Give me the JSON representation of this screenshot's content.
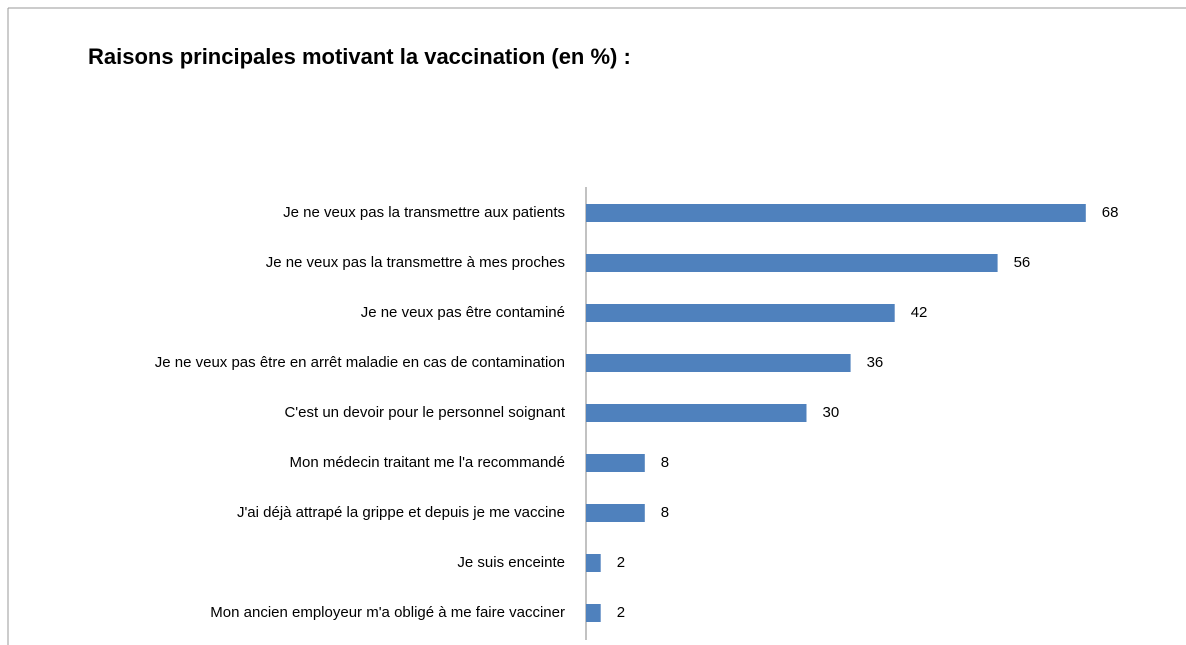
{
  "chart_data": {
    "type": "bar",
    "orientation": "horizontal",
    "title": "Raisons principales motivant la vaccination (en %) :",
    "categories": [
      "Je ne veux pas la transmettre aux patients",
      "Je ne veux pas la transmettre à mes proches",
      "Je ne veux pas être contaminé",
      "Je ne veux pas être en arrêt maladie en cas de contamination",
      "C'est un devoir pour le personnel soignant",
      "Mon médecin traitant me l'a recommandé",
      "J'ai déjà attrapé la grippe et depuis je me vaccine",
      "Je suis enceinte",
      "Mon ancien employeur m'a obligé à me faire vacciner"
    ],
    "values": [
      68,
      56,
      42,
      36,
      30,
      8,
      8,
      2,
      2
    ],
    "color": "#4f81bd",
    "xlim": [
      0,
      80
    ]
  }
}
